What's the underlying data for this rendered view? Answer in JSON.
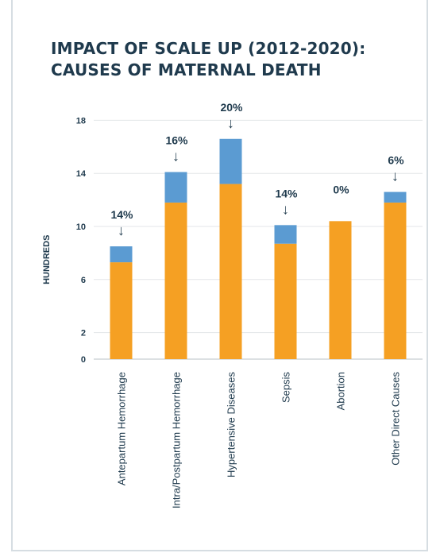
{
  "title_lines": [
    "IMPACT OF SCALE UP (2012-2020):",
    "CAUSES OF MATERNAL DEATH"
  ],
  "chart_data": {
    "type": "bar",
    "stacked": true,
    "ylabel": "HUNDREDS",
    "yticks": [
      "0",
      "2",
      "6",
      "10",
      "14",
      "18"
    ],
    "ylim": [
      0,
      18
    ],
    "grid": true,
    "categories": [
      "Antepartum Hemorrhage",
      "Intra/Postpartum Hemorrhage",
      "Hypertensive Diseases",
      "Sepsis",
      "Abortion",
      "Other Direct Causes"
    ],
    "series": [
      {
        "values": [
          7.3,
          11.8,
          13.2,
          8.7,
          10.4,
          11.8
        ],
        "color": "#f5a023"
      },
      {
        "values": [
          1.2,
          2.3,
          3.4,
          1.4,
          0,
          0.8
        ],
        "color": "#5b9bd2"
      }
    ],
    "annotations": [
      "14%",
      "16%",
      "20%",
      "14%",
      "0%",
      "6%"
    ],
    "annotation_arrow": "↓"
  }
}
